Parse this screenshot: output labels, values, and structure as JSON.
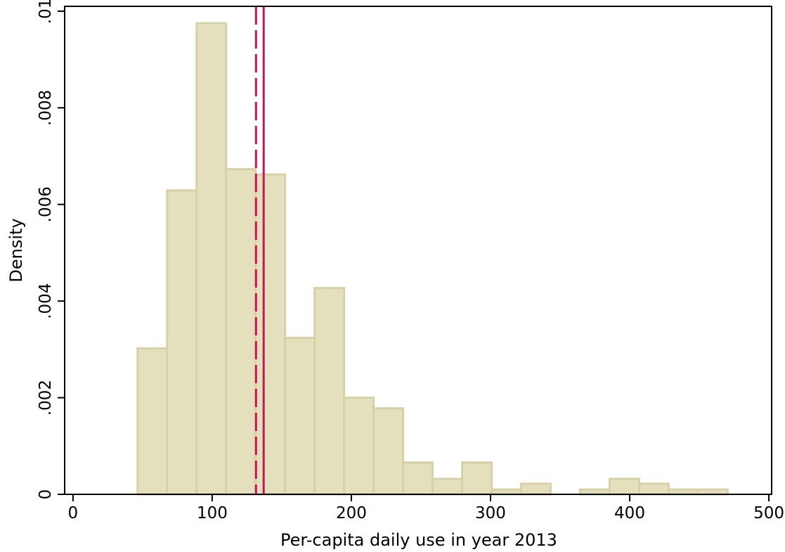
{
  "chart_data": {
    "type": "histogram",
    "title": "",
    "xlabel": "Per-capita daily use in year 2013",
    "ylabel": "Density",
    "xlim": [
      -6,
      502
    ],
    "ylim": [
      0,
      0.0101
    ],
    "x_ticks": [
      0,
      100,
      200,
      300,
      400,
      500
    ],
    "x_tick_labels": [
      "0",
      "100",
      "200",
      "300",
      "400",
      "500"
    ],
    "y_ticks": [
      0,
      0.002,
      0.004,
      0.006,
      0.008,
      0.01
    ],
    "y_tick_labels": [
      "0",
      ".002",
      ".004",
      ".006",
      ".008",
      ".01"
    ],
    "grid": false,
    "bin_width": 21.2,
    "bins": [
      {
        "x0": 46.4,
        "x1": 67.6,
        "density": 0.00302
      },
      {
        "x0": 67.6,
        "x1": 88.8,
        "density": 0.00629
      },
      {
        "x0": 88.8,
        "x1": 110.0,
        "density": 0.00975
      },
      {
        "x0": 110.0,
        "x1": 131.2,
        "density": 0.00673
      },
      {
        "x0": 131.2,
        "x1": 152.4,
        "density": 0.00662
      },
      {
        "x0": 152.4,
        "x1": 173.6,
        "density": 0.00324
      },
      {
        "x0": 173.6,
        "x1": 194.8,
        "density": 0.00427
      },
      {
        "x0": 194.8,
        "x1": 216.0,
        "density": 0.002
      },
      {
        "x0": 216.0,
        "x1": 237.2,
        "density": 0.00178
      },
      {
        "x0": 237.2,
        "x1": 258.4,
        "density": 0.00066
      },
      {
        "x0": 258.4,
        "x1": 279.6,
        "density": 0.00032
      },
      {
        "x0": 279.6,
        "x1": 300.8,
        "density": 0.00066
      },
      {
        "x0": 300.8,
        "x1": 322.0,
        "density": 0.0001
      },
      {
        "x0": 322.0,
        "x1": 343.2,
        "density": 0.00022
      },
      {
        "x0": 343.2,
        "x1": 364.4,
        "density": 0
      },
      {
        "x0": 364.4,
        "x1": 385.6,
        "density": 0.0001
      },
      {
        "x0": 385.6,
        "x1": 406.8,
        "density": 0.00032
      },
      {
        "x0": 406.8,
        "x1": 428.0,
        "density": 0.00022
      },
      {
        "x0": 428.0,
        "x1": 449.2,
        "density": 0.0001
      },
      {
        "x0": 449.2,
        "x1": 470.4,
        "density": 0.0001
      }
    ],
    "reference_lines": [
      {
        "x": 131.5,
        "style": "dashed",
        "color": "#c2185b"
      },
      {
        "x": 137.0,
        "style": "solid",
        "color": "#c2185b"
      }
    ],
    "colors": {
      "bar_fill": "#e4dfbd",
      "bar_edge": "#d7d1a8",
      "axis": "#000000"
    }
  }
}
